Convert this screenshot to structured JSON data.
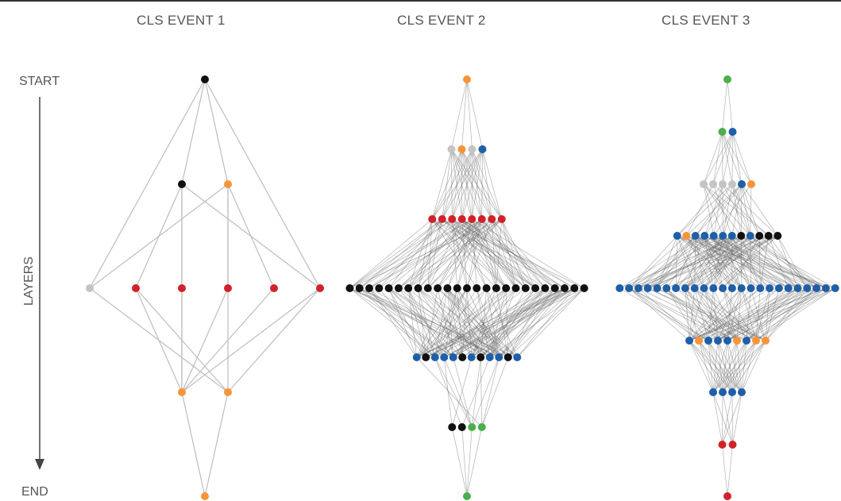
{
  "axis": {
    "start_label": "START",
    "end_label": "END",
    "side_label": "LAYERS"
  },
  "colors": {
    "black": "#111111",
    "orange": "#f7943a",
    "red": "#d1222a",
    "blue": "#1f5fa8",
    "green": "#4cae4c",
    "gray": "#c4c4c4",
    "edge": "#555555"
  },
  "events": [
    {
      "title": "CLS EVENT 1",
      "layers": [
        [
          "black"
        ],
        [
          "black",
          "orange"
        ],
        [
          "gray",
          "red",
          "red",
          "red",
          "red",
          "red"
        ],
        [
          "orange",
          "orange"
        ],
        [
          "orange"
        ]
      ]
    },
    {
      "title": "CLS EVENT 2",
      "layers": [
        [
          "orange"
        ],
        [
          "gray",
          "orange",
          "gray",
          "blue"
        ],
        [
          "red",
          "red",
          "red",
          "red",
          "red",
          "red",
          "red",
          "red"
        ],
        [
          "black",
          "black",
          "black",
          "black",
          "black",
          "black",
          "black",
          "black",
          "black",
          "black",
          "black",
          "black",
          "black",
          "black",
          "black",
          "black",
          "black",
          "black",
          "black",
          "black",
          "black",
          "black",
          "black",
          "black",
          "black"
        ],
        [
          "blue",
          "black",
          "blue",
          "blue",
          "blue",
          "black",
          "blue",
          "black",
          "blue",
          "blue",
          "black",
          "blue"
        ],
        [
          "black",
          "black",
          "green",
          "green"
        ],
        [
          "green"
        ]
      ]
    },
    {
      "title": "CLS EVENT 3",
      "layers": [
        [
          "green"
        ],
        [
          "green",
          "blue"
        ],
        [
          "gray",
          "gray",
          "gray",
          "gray",
          "blue",
          "orange"
        ],
        [
          "blue",
          "orange",
          "blue",
          "blue",
          "blue",
          "blue",
          "blue",
          "black",
          "blue",
          "black",
          "black",
          "black"
        ],
        [
          "blue",
          "blue",
          "blue",
          "blue",
          "blue",
          "blue",
          "blue",
          "blue",
          "blue",
          "blue",
          "blue",
          "blue",
          "blue",
          "blue",
          "blue",
          "blue",
          "blue",
          "blue",
          "blue",
          "blue",
          "blue",
          "blue",
          "blue",
          "blue"
        ],
        [
          "blue",
          "orange",
          "blue",
          "blue",
          "blue",
          "orange",
          "blue",
          "orange",
          "orange"
        ],
        [
          "blue",
          "blue",
          "blue",
          "blue"
        ],
        [
          "red",
          "red"
        ],
        [
          "red"
        ]
      ]
    }
  ]
}
